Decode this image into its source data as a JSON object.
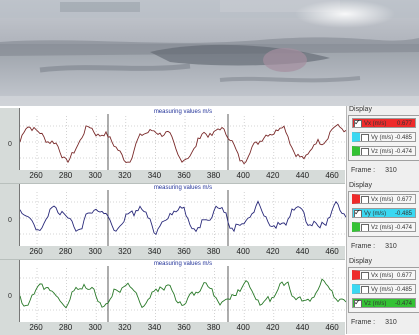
{
  "colors": {
    "vx": "#7a2a2a",
    "vy": "#2a2a7a",
    "vz": "#2a7a2a",
    "active_red": "#ee2a2a",
    "active_cyan": "#3ad8f2",
    "active_green": "#34c234",
    "plot_title": "#223399"
  },
  "x_ticks": [
    "260",
    "280",
    "300",
    "320",
    "340",
    "360",
    "380",
    "400",
    "420",
    "440",
    "460"
  ],
  "panels": [
    {
      "title": "measuring values m/s",
      "zero_label": "0",
      "display_label": "Display",
      "frame_label": "Frame :",
      "frame_value": "310",
      "rows": [
        {
          "label": "Vx (m/s)",
          "value": "0.677",
          "checked": true,
          "active": "red"
        },
        {
          "label": "Vy (m/s)",
          "value": "-0.485",
          "checked": false,
          "active": "cyan"
        },
        {
          "label": "Vz (m/s)",
          "value": "-0.474",
          "checked": false,
          "active": "green"
        }
      ]
    },
    {
      "title": "measuring values m/s",
      "zero_label": "0",
      "display_label": "Display",
      "frame_label": "Frame :",
      "frame_value": "310",
      "rows": [
        {
          "label": "Vx (m/s)",
          "value": "0.677",
          "checked": false,
          "active": "red"
        },
        {
          "label": "Vy (m/s)",
          "value": "-0.485",
          "checked": true,
          "active": "cyan"
        },
        {
          "label": "Vz (m/s)",
          "value": "-0.474",
          "checked": false,
          "active": "green"
        }
      ]
    },
    {
      "title": "measuring values m/s",
      "zero_label": "0",
      "display_label": "Display",
      "frame_label": "Frame :",
      "frame_value": "310",
      "rows": [
        {
          "label": "Vx (m/s)",
          "value": "0.677",
          "checked": false,
          "active": "red"
        },
        {
          "label": "Vy (m/s)",
          "value": "-0.485",
          "checked": false,
          "active": "cyan"
        },
        {
          "label": "Vz (m/s)",
          "value": "-0.474",
          "checked": true,
          "active": "green"
        }
      ]
    }
  ]
}
